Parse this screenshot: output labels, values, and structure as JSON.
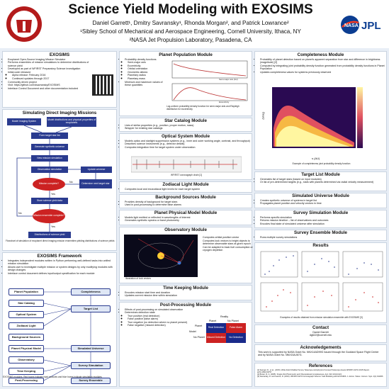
{
  "header": {
    "title": "Science Yield Modeling with EXOSIMS",
    "authors": "Daniel Garrett¹, Dmitry Savransky¹, Rhonda Morgan², and Patrick Lowrance²",
    "affil1": "¹Sibley School of Mechanical and Aerospace Engineering, Cornell University, Ithaca, NY",
    "affil2": "²NASA Jet Propulsion Laboratory, Pasadena, CA",
    "left_logo": "CORNELL UNIVERSITY",
    "right_logo": "NASA JPL"
  },
  "exosims": {
    "title": "EXOSIMS",
    "items": [
      "Exoplanet Open-Source Imaging Mission Simulator",
      "Performs ensembles of mission simulations to determine distributions of science yield",
      "Developed as part of WFIRST Preparatory Science investigation",
      "Initial code released",
      "Alpha release: February 2016",
      "Continued updates through 2017",
      "Community driven project",
      "Visit: https://github.com/dsavransky/EXOSIMS",
      "Interface Control Document and other documentation included"
    ]
  },
  "simdim": {
    "title": "Simulating Direct Imaging Missions",
    "nodes": {
      "mis": "Model Imaging System",
      "dist": "Model distributions and physical properties of exoplanets",
      "form": "Form target star list",
      "gen": "Generate synthetic universe",
      "newsim": "New mission simulation",
      "obs": "Observation simulation",
      "upd": "Update universe",
      "mc": "Mission complete?",
      "det": "Determine next target star",
      "store": "Store science yield data",
      "me": "Mission ensemble complete?",
      "dsy": "Distributions of science yield"
    },
    "yes": "Yes",
    "no": "No",
    "caption": "Flowchart of simulation of exoplanet direct imaging mission ensembles yielding distributions of science yields"
  },
  "framework": {
    "title": "EXOSIMS Framework",
    "items": [
      "Integrates independent modules written in Python performing well-defined tasks into unified mission simulation",
      "Allows user to investigate multiple mission or system designs by only modifying modules with design changes",
      "Interface control document defines input/output specification for each module"
    ],
    "left": [
      "Planet Population",
      "Star Catalog",
      "Optical System",
      "Zodiacal Light",
      "Background Sources",
      "Planet Physical Model",
      "Observatory",
      "Time Keeping",
      "Post-Processing"
    ],
    "right": [
      "Completeness",
      "Target List",
      "Simulated Universe",
      "Survey Simulation",
      "Survey Ensemble"
    ],
    "caption": "EXOSIMS modules. Red boxes indicate input modules and blue boxes indicate simulation modules"
  },
  "pp": {
    "title": "Planet Population Module",
    "items": [
      "Probability density functions",
      "Semi-major axis",
      "Eccentricity",
      "Orbital orientation",
      "Geometric albedo",
      "Planetary radius",
      "Planetary mass",
      "Minimum and maximum values of these quantities"
    ],
    "xlabel1": "Semi-major axis (AU)",
    "xlabel2": "Eccentricity",
    "caption": "Log-uniform probability density function for semi-major axis and Rayleigh distribution for eccentricity"
  },
  "sc": {
    "title": "Star Catalog Module",
    "items": [
      "Lists of stellar properties (e.g., position, proper motion, mass)",
      "Wrapper for existing star catalogs"
    ]
  },
  "os": {
    "title": "Optical System Module",
    "items": [
      "Models optics and starlight suppression systems (e.g., inner and outer working angle, contrast, and throughput)",
      "Describes science instruments (e.g., detector details)",
      "Computes integration time for target system under observation"
    ],
    "caption": "WFIRST coronagraph chain [1]"
  },
  "zl": {
    "title": "Zodiacal Light Module",
    "items": [
      "Computes local and exozodiacal light levels for each target system"
    ]
  },
  "bs": {
    "title": "Background Sources Module",
    "items": [
      "Provides density of background for target stars",
      "Used in post-processing to determine false alarms"
    ]
  },
  "ppm": {
    "title": "Planet Physical Model Module",
    "items": [
      "Models light emitted or reflected in wavelengths of interest",
      "Generates synthetic spectra or band photometry"
    ]
  },
  "obsm": {
    "title": "Observatory Module",
    "items": [
      "Computes orbital position vector",
      "Computes look vectors to bright objects to determine observable stars at given epoch",
      "Can be adapted to track fuel consumption or cryogen depletion"
    ],
    "caption": "Illustration of look vectors"
  },
  "tk": {
    "title": "Time Keeping Module",
    "items": [
      "Encodes mission start time and duration",
      "Updates current mission time within simulation"
    ]
  },
  "post": {
    "title": "Post-Processing Module",
    "items": [
      "Effects of post-processing on simulated observation",
      "Determines detection state",
      "True positive (real detection)",
      "False positive (false alarm)",
      "True negative (no detection where no planet present)",
      "False negative (missed detection)"
    ],
    "reality": "Reality",
    "col1": "Planet",
    "col2": "No Planet",
    "row1": "Planet",
    "row2": "No Planet",
    "model": "Model",
    "cells": [
      "Real Detection",
      "False Alarm",
      "Missed Detection",
      "No Detection"
    ]
  },
  "cmp": {
    "title": "Completeness Module",
    "items": [
      "Probability of planet detection based on planet's apparent separation from star and difference in brightness (magnitude) [2]",
      "Computed by integrating joint probability density function generated from probability density functions in Planet Population",
      "Updates completeness values for systems previously observed"
    ],
    "caption": "Example of completeness joint probability density function",
    "xlabel": "s (AU)",
    "ylabel": "Δmag"
  },
  "tl": {
    "title": "Target List Module",
    "items": [
      "Generates list of target stars (based on input modules)",
      "Or list of pre-determined targets (e.g., stars with planets determined via radial velocity measurement)"
    ]
  },
  "su": {
    "title": "Simulated Universe Module",
    "items": [
      "Creates synthetic universe of systems in target list",
      "Propagates planet position and velocity vectors in time"
    ]
  },
  "ss": {
    "title": "Survey Simulation Module",
    "items": [
      "Performs specific simulation",
      "Returns mission timeline – list of observations and outcomes",
      "Encodes final state of simulated universe after simulation"
    ]
  },
  "se": {
    "title": "Survey Ensemble Module",
    "items": [
      "Runs multiple survey simulations"
    ]
  },
  "results": {
    "title": "Results",
    "caption": "Examples of results obtained from mission simulation ensemble with EXOSIMS [3]"
  },
  "contact": {
    "title": "Contact",
    "name": "Daniel Garrett",
    "email": "dg622@cornell.edu"
  },
  "ack": {
    "title": "Acknowledgements",
    "text": "This work is supported by NASA Grant No. NNX14AD99G issued through the Goddard Space Flight Center and by NASA Grant No. NNX15AJ67G."
  },
  "refs": {
    "title": "References",
    "items": [
      "[1] Spergel, D., et al., (2015). Wide-Field InfraRed Survey Telescope-Astrophysics Focused Telescope Assets WFIRST-AFTA 2015 Report. arXiv:1503.03757",
      "[2] Brown, R. A. (2005). Single-Visit Photometric and Obscurational Completeness. ApJ, 624 1010-1024",
      "[3] Savransky, D. and Garrett, D. (2016). WFIRST-AFTA Coronagraph Science Yield Modeling with EXOSIMS. J. Astron. Telesc. Instrum. Syst. 2(1):011006"
    ]
  },
  "colors": {
    "navy": "#2a3b8f",
    "red": "#cc2222",
    "bg": "#e8eef6"
  }
}
